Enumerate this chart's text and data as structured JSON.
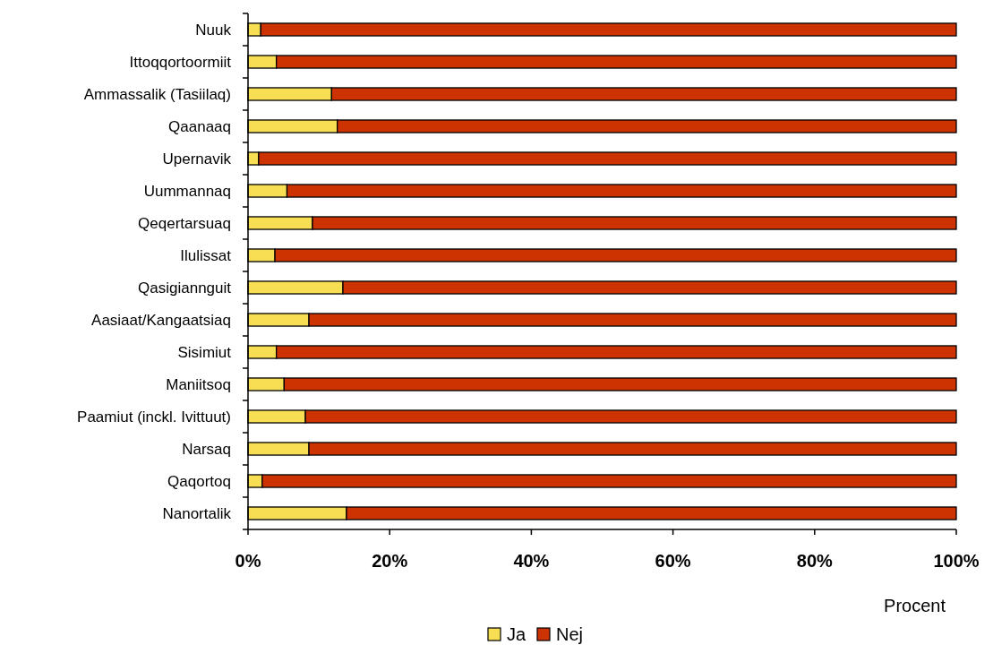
{
  "chart_data": {
    "type": "bar",
    "orientation": "horizontal",
    "stacked": true,
    "categories": [
      "Nuuk",
      "Ittoqqortoormiit",
      "Ammassalik (Tasiilaq)",
      "Qaanaaq",
      "Upernavik",
      "Uummannaq",
      "Qeqertarsuaq",
      "Ilulissat",
      "Qasigiannguit",
      "Aasiaat/Kangaatsiaq",
      "Sisimiut",
      "Maniitsoq",
      "Paamiut (inckl. Ivittuut)",
      "Narsaq",
      "Qaqortoq",
      "Nanortalik"
    ],
    "series": [
      {
        "name": "Ja",
        "color": "#f8de52",
        "values": [
          1.8,
          4.0,
          11.8,
          12.6,
          1.5,
          5.5,
          9.1,
          3.8,
          13.4,
          8.6,
          4.0,
          5.1,
          8.1,
          8.6,
          2.0,
          13.9
        ]
      },
      {
        "name": "Nej",
        "color": "#cc3300",
        "values": [
          98.2,
          96.0,
          88.2,
          87.4,
          98.5,
          94.5,
          90.9,
          96.2,
          86.6,
          91.4,
          96.0,
          94.9,
          91.9,
          91.4,
          98.0,
          86.1
        ]
      }
    ],
    "xlabel": "Procent",
    "xlim": [
      0,
      100
    ],
    "xticks": [
      {
        "value": 0,
        "label": "0%"
      },
      {
        "value": 20,
        "label": "20%"
      },
      {
        "value": 40,
        "label": "40%"
      },
      {
        "value": 60,
        "label": "60%"
      },
      {
        "value": 80,
        "label": "80%"
      },
      {
        "value": 100,
        "label": "100%"
      }
    ],
    "legend": "bottom"
  }
}
